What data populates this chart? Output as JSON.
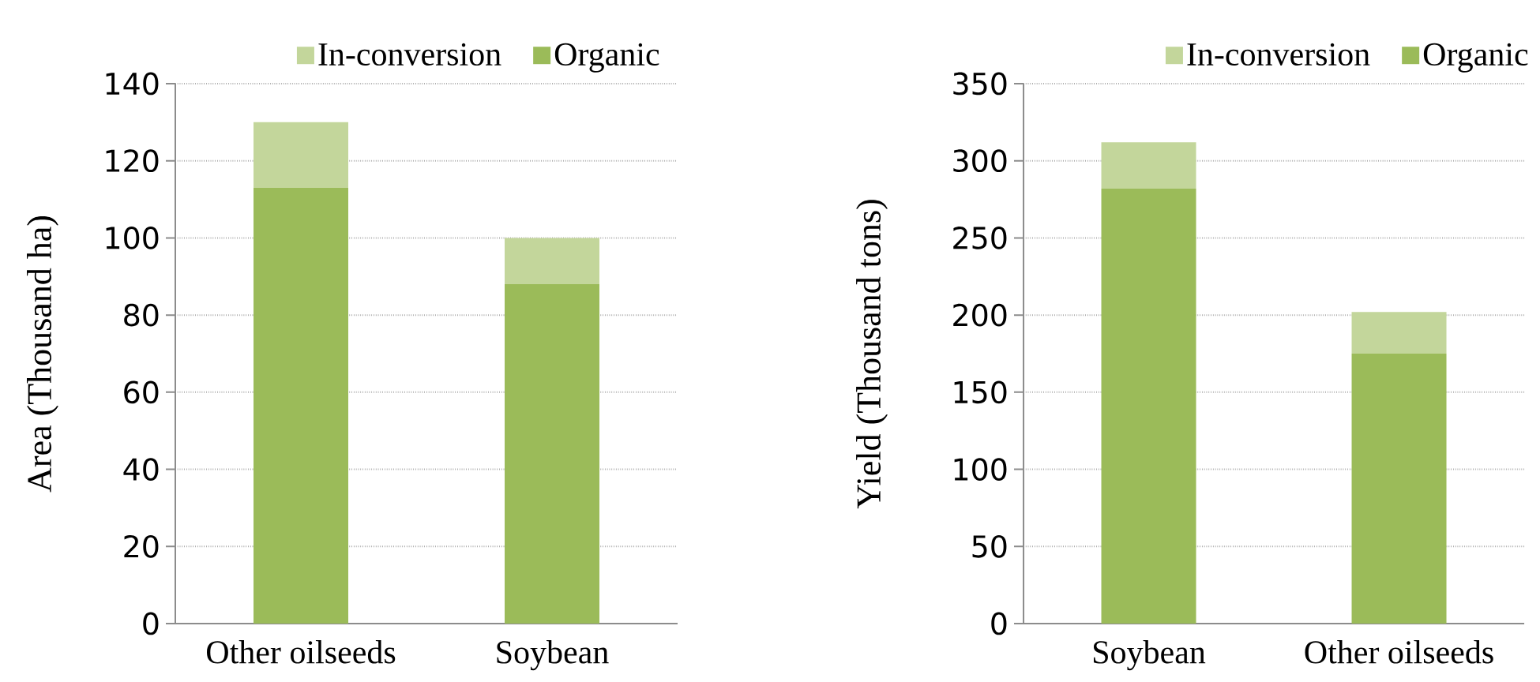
{
  "chart_data": [
    {
      "type": "bar",
      "stacked": true,
      "categories": [
        "Other oilseeds",
        "Soybean"
      ],
      "ylabel": "Area (Thousand ha)",
      "ylim": [
        0,
        140
      ],
      "yticks": [
        0,
        20,
        40,
        60,
        80,
        100,
        120,
        140
      ],
      "grid": "y",
      "legend": "top right",
      "series": [
        {
          "name": "Organic",
          "color": "#9bbb59",
          "values": [
            113,
            88
          ]
        },
        {
          "name": "In-conversion",
          "color": "#c3d69b",
          "values": [
            17,
            12
          ]
        }
      ]
    },
    {
      "type": "bar",
      "stacked": true,
      "categories": [
        "Soybean",
        "Other oilseeds"
      ],
      "ylabel": "Yield (Thousand tons)",
      "ylim": [
        0,
        350
      ],
      "yticks": [
        0,
        50,
        100,
        150,
        200,
        250,
        300,
        350
      ],
      "grid": "y",
      "legend": "top right",
      "series": [
        {
          "name": "Organic",
          "color": "#9bbb59",
          "values": [
            282,
            175
          ]
        },
        {
          "name": "In-conversion",
          "color": "#c3d69b",
          "values": [
            30,
            27
          ]
        }
      ]
    }
  ]
}
